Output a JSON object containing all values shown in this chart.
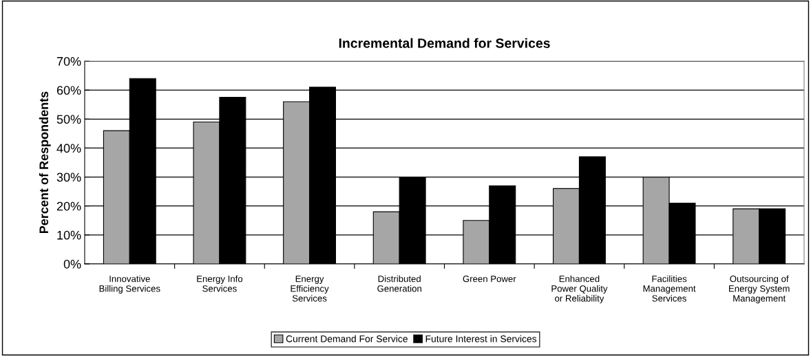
{
  "chart_data": {
    "type": "bar",
    "title": "Incremental Demand for Services",
    "ylabel": "Percent of Respondents",
    "categories": [
      "Innovative\nBilling Services",
      "Energy Info\nServices",
      "Energy\nEfficiency\nServices",
      "Distributed\nGeneration",
      "Green Power",
      "Enhanced\nPower Quality\nor Reliability",
      "Facilities\nManagement\nServices",
      "Outsourcing of\nEnergy System\nManagement"
    ],
    "series": [
      {
        "name": "Current Demand For Service",
        "color": "#a6a6a6",
        "values": [
          46,
          49,
          56,
          18,
          15,
          26,
          30,
          19
        ]
      },
      {
        "name": "Future Interest in Services",
        "color": "#000000",
        "values": [
          64,
          57.5,
          61,
          30,
          27,
          37,
          21,
          19
        ]
      }
    ],
    "ylim": [
      0,
      70
    ],
    "yticks": [
      {
        "value": 0,
        "label": "0%"
      },
      {
        "value": 10,
        "label": "10%"
      },
      {
        "value": 20,
        "label": "20%"
      },
      {
        "value": 30,
        "label": "30%"
      },
      {
        "value": 40,
        "label": "40%"
      },
      {
        "value": 50,
        "label": "50%"
      },
      {
        "value": 60,
        "label": "60%"
      },
      {
        "value": 70,
        "label": "70%"
      }
    ],
    "grid": "y",
    "legend": "bottom"
  }
}
